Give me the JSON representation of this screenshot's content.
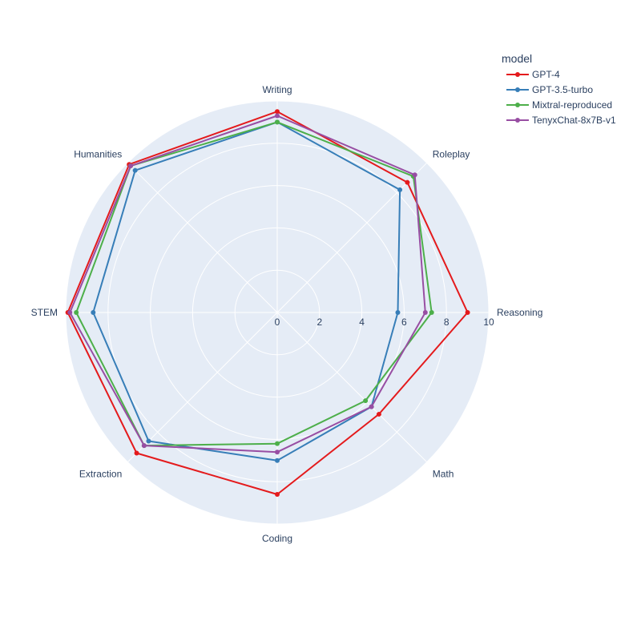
{
  "chart_data": {
    "type": "radar",
    "categories": [
      "Writing",
      "Roleplay",
      "Reasoning",
      "Math",
      "Coding",
      "Extraction",
      "STEM",
      "Humanities"
    ],
    "radial_range": [
      0,
      10
    ],
    "radial_ticks": [
      "0",
      "2",
      "4",
      "6",
      "8",
      "10"
    ],
    "legend_title": "model",
    "legend_position": "top-right",
    "series": [
      {
        "name": "GPT-4",
        "color": "#e41a1c",
        "values": [
          9.5,
          8.7,
          9.0,
          6.8,
          8.6,
          9.4,
          9.9,
          9.9
        ]
      },
      {
        "name": "GPT-3.5-turbo",
        "color": "#377eb8",
        "values": [
          9.0,
          8.2,
          5.7,
          6.3,
          7.0,
          8.6,
          8.7,
          9.5
        ]
      },
      {
        "name": "Mixtral-reproduced",
        "color": "#4daf4a",
        "values": [
          9.0,
          9.1,
          7.3,
          5.9,
          6.2,
          8.9,
          9.5,
          9.8
        ]
      },
      {
        "name": "TenyxChat-8x7B-v1",
        "color": "#984ea3",
        "values": [
          9.3,
          9.2,
          7.0,
          6.3,
          6.6,
          8.9,
          9.8,
          9.8
        ]
      }
    ]
  }
}
